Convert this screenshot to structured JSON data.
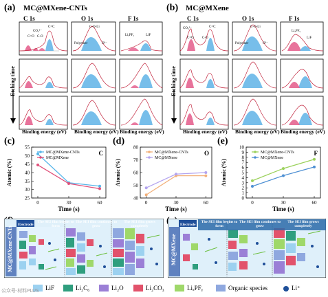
{
  "panel_a": {
    "letter": "(a)",
    "title": "MC@MXene-CNTs",
    "cores": [
      "C 1s",
      "O 1s",
      "F 1s"
    ],
    "side_label": "Etching time",
    "xlabel": "Binding energy (eV)",
    "c1s_ticks": [
      "294",
      "292",
      "290",
      "288",
      "286",
      "284",
      "282"
    ],
    "o1s_ticks": [
      "536",
      "534",
      "532",
      "530",
      "528",
      "526"
    ],
    "f1s_ticks": [
      "690",
      "688",
      "686",
      "684",
      "682",
      "680"
    ],
    "c1s_peaks": [
      "CO₃²⁻",
      "C=C",
      "C=O",
      "C-O"
    ],
    "o1s_peaks": [
      "C-O-Li",
      "Polyether",
      "O²⁻"
    ],
    "f1s_peaks": [
      "LiₓPFᵧ",
      "LiF"
    ]
  },
  "panel_b": {
    "letter": "(b)",
    "title": "MC@MXene",
    "cores": [
      "C 1s",
      "O 1s",
      "F 1s"
    ],
    "side_label": "Etching time",
    "xlabel": "Binding energy (eV)",
    "c1s_ticks": [
      "294",
      "292",
      "290",
      "288",
      "286",
      "284",
      "282"
    ],
    "o1s_ticks": [
      "536",
      "534",
      "532",
      "530",
      "528",
      "526"
    ],
    "f1s_ticks": [
      "690",
      "688",
      "686",
      "684",
      "682",
      "680"
    ],
    "c1s_peaks": [
      "CO₃²⁻",
      "C=C",
      "C=O",
      "C-O"
    ],
    "o1s_peaks": [
      "C-O-Li",
      "Polyether",
      "O²⁻"
    ],
    "f1s_peaks": [
      "LiₓPFᵧ",
      "LiF"
    ]
  },
  "panel_f": {
    "letter": "(f)",
    "side_label": "MC@MXene-CNTs",
    "electrode": "Electrode",
    "stages": [
      "The SEI film begins to form",
      "The SEI film continues to grow",
      "The SEI film grows completely"
    ]
  },
  "panel_g": {
    "letter": "(g)",
    "side_label": "MC@MXene",
    "electrode": "Electrode",
    "stages": [
      "The SEI film begins to form",
      "The SEI film continues to grow",
      "The SEI film grows completely"
    ]
  },
  "legend": [
    {
      "label": "LiF",
      "color": "#9cd1f0"
    },
    {
      "label": "Li₂C₆",
      "color": "#2f9e7e"
    },
    {
      "label": "Li₂O",
      "color": "#9b7fd6"
    },
    {
      "label": "Li₂CO₃",
      "color": "#e2526b"
    },
    {
      "label": "LiₓPFᵧ",
      "color": "#9fd86a"
    },
    {
      "label": "Organic species",
      "color": "#8fa8df"
    },
    {
      "label": "Li⁺",
      "color": "#1f4f99"
    }
  ],
  "watermark": "公众号·材料PLUS",
  "chart_data": [
    {
      "panel": "(c)",
      "type": "line",
      "xlabel": "Time (s)",
      "ylabel": "Atomic (%)",
      "element_tag": "C",
      "x": [
        0,
        30,
        60
      ],
      "xticks": [
        "0",
        "30",
        "60"
      ],
      "ylim": [
        25,
        55
      ],
      "yticks": [
        25,
        30,
        35,
        40,
        45,
        50,
        55
      ],
      "series": [
        {
          "name": "MC@MXene-CNTs",
          "color": "#58b6ea",
          "values": [
            51,
            34,
            32
          ]
        },
        {
          "name": "MC@MXene",
          "color": "#e0507a",
          "values": [
            44.5,
            33.5,
            30.5
          ]
        }
      ]
    },
    {
      "panel": "(d)",
      "type": "line",
      "xlabel": "Time (s)",
      "ylabel": "Atomic (%)",
      "element_tag": "O",
      "x": [
        0,
        30,
        60
      ],
      "xticks": [
        "0",
        "30",
        "60"
      ],
      "ylim": [
        40,
        80
      ],
      "yticks": [
        40,
        50,
        60,
        70,
        80
      ],
      "series": [
        {
          "name": "MC@MXene-CNTs",
          "color": "#f2b07a",
          "values": [
            42.5,
            57.5,
            57.5
          ]
        },
        {
          "name": "MC@MXene",
          "color": "#b3a4ef",
          "values": [
            48,
            58.8,
            60
          ]
        }
      ]
    },
    {
      "panel": "(e)",
      "type": "line",
      "xlabel": "Time (s)",
      "ylabel": "Atomic (%)",
      "element_tag": "F",
      "x": [
        0,
        30,
        60
      ],
      "xticks": [
        "0",
        "30",
        "60"
      ],
      "ylim": [
        0,
        10
      ],
      "yticks": [
        0,
        1,
        2,
        3,
        4,
        5,
        6,
        7,
        8,
        9,
        10
      ],
      "series": [
        {
          "name": "MC@MXene-CNTs",
          "color": "#9bd15b",
          "values": [
            3.4,
            5.8,
            7.6
          ]
        },
        {
          "name": "MC@MXene",
          "color": "#4d8fd3",
          "values": [
            2.3,
            4.4,
            6.1
          ]
        }
      ]
    }
  ]
}
